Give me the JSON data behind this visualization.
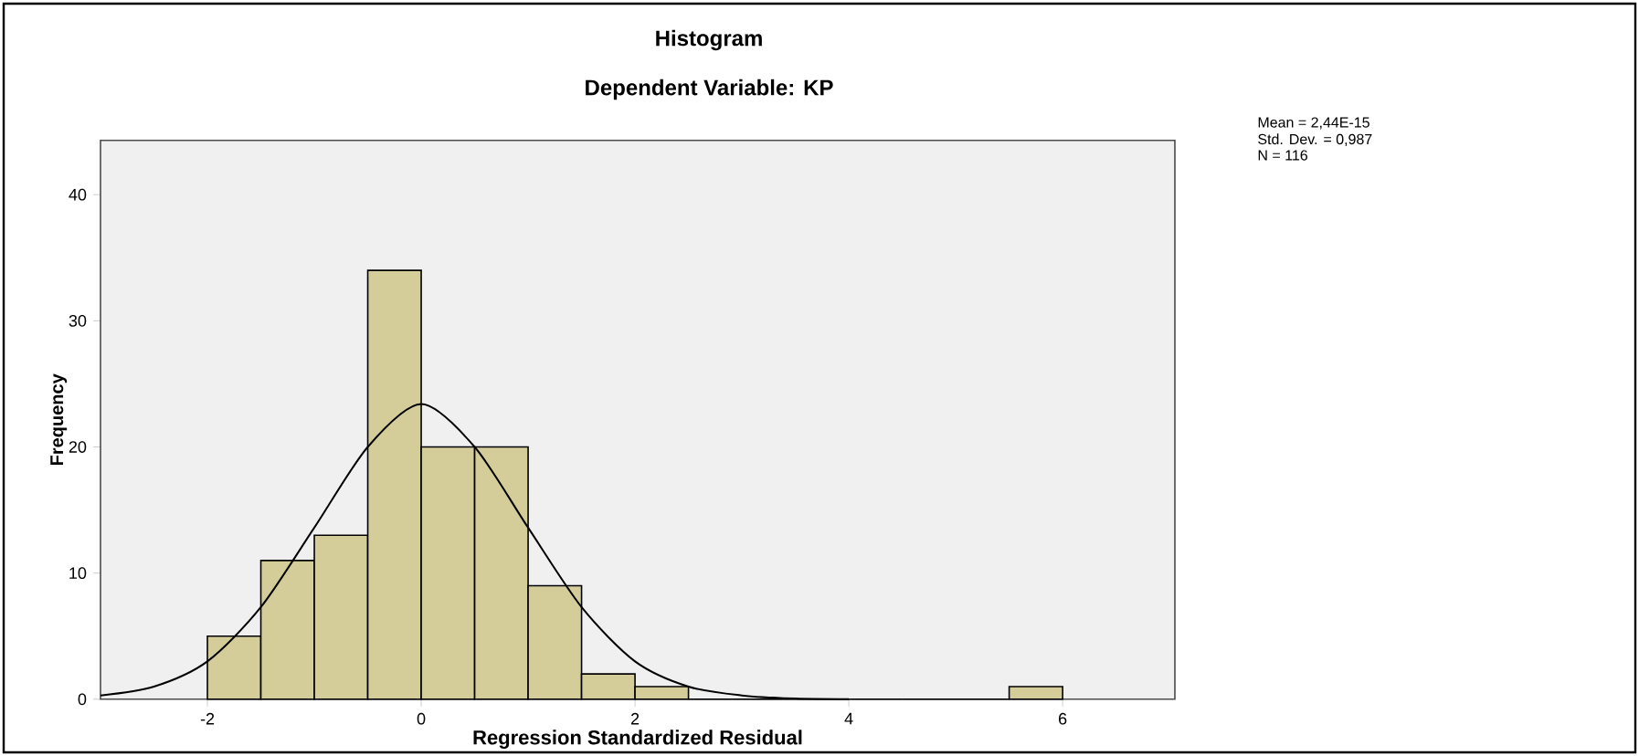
{
  "chart_data": {
    "type": "histogram",
    "title": "Histogram",
    "subtitle": "Dependent Variable: KP",
    "xlabel": "Regression Standardized Residual",
    "ylabel": "Frequency",
    "bins": [
      -2,
      -1.5,
      -1,
      -0.5,
      0,
      0.5,
      1,
      1.5,
      2,
      2.5,
      3,
      3.5,
      4,
      4.5,
      5,
      5.5,
      6
    ],
    "values": [
      5,
      11,
      13,
      34,
      20,
      20,
      9,
      2,
      1,
      0,
      0,
      0,
      0,
      0,
      0,
      1
    ],
    "color": "#d4cd9a",
    "series": [
      {
        "type": "line",
        "color": "#000000",
        "x": [
          -3,
          -2.5,
          -2,
          -1.5,
          -1,
          -0.5,
          0,
          0.5,
          1,
          1.5,
          2,
          2.5,
          3,
          3.5,
          4
        ],
        "values": [
          0.3,
          1.0,
          3.0,
          7.3,
          13.6,
          20.0,
          23.4,
          20.0,
          13.6,
          7.3,
          3.0,
          1.0,
          0.3,
          0.05,
          0
        ]
      }
    ],
    "xlim": [
      -3,
      7.05
    ],
    "ylim": [
      0,
      44.3
    ],
    "xticks": [
      -2,
      0,
      2,
      4,
      6
    ],
    "yticks": [
      0,
      10,
      20,
      30,
      40
    ],
    "grid": false,
    "annotations": [
      "Mean = 2,44E-15",
      "Std. Dev. = 0,987",
      "N = 116"
    ]
  }
}
